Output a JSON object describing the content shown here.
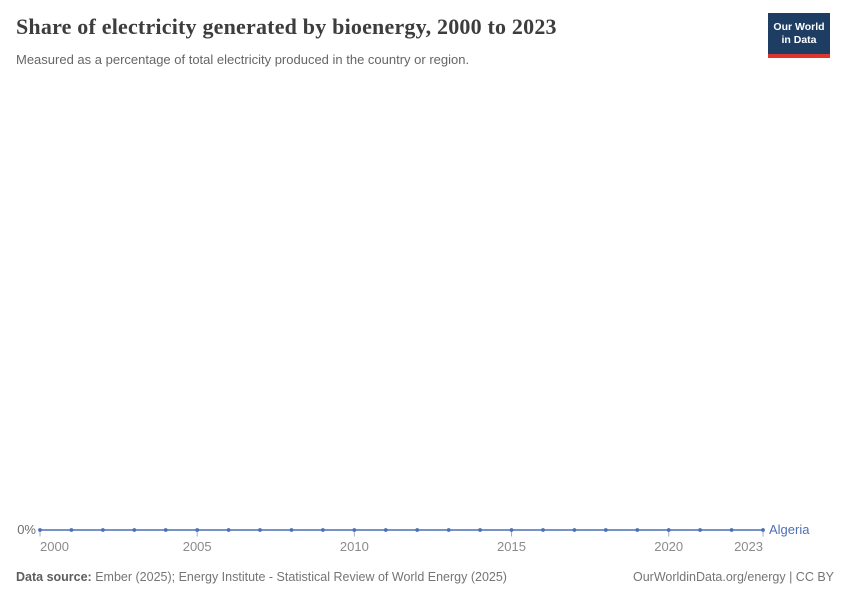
{
  "header": {
    "title": "Share of electricity generated by bioenergy, 2000 to 2023",
    "subtitle": "Measured as a percentage of total electricity produced in the country or region."
  },
  "logo": {
    "line1": "Our World",
    "line2": "in Data",
    "bg_color": "#1d3d63",
    "strip_color": "#dc362e"
  },
  "chart_data": {
    "type": "line",
    "title": "Share of electricity generated by bioenergy, 2000 to 2023",
    "subtitle": "Measured as a percentage of total electricity produced in the country or region.",
    "entity": "Algeria",
    "unit": "%",
    "x": [
      2000,
      2001,
      2002,
      2003,
      2004,
      2005,
      2006,
      2007,
      2008,
      2009,
      2010,
      2011,
      2012,
      2013,
      2014,
      2015,
      2016,
      2017,
      2018,
      2019,
      2020,
      2021,
      2022,
      2023
    ],
    "series": [
      {
        "name": "Algeria",
        "values": [
          0,
          0,
          0,
          0,
          0,
          0,
          0,
          0,
          0,
          0,
          0,
          0,
          0,
          0,
          0,
          0,
          0,
          0,
          0,
          0,
          0,
          0,
          0,
          0
        ]
      }
    ],
    "x_ticks": [
      "2000",
      "2005",
      "2010",
      "2015",
      "2020",
      "2023"
    ],
    "y_tick_label": "0%",
    "ylim": [
      0,
      0
    ],
    "grid": false,
    "legend_position": "right-inline-label",
    "line_color": "#4c6fb8",
    "marker": "dot"
  },
  "footer": {
    "source_label": "Data source:",
    "source_text": "Ember (2025); Energy Institute - Statistical Review of World Energy (2025)",
    "right_text": "OurWorldinData.org/energy | CC BY"
  },
  "colors": {
    "title": "#3d3d3d",
    "subtitle": "#666666",
    "axis_labels": "#8b8b8b",
    "axis_ticks": "#a3aec6",
    "series_algeria": "#4c6fb8"
  }
}
